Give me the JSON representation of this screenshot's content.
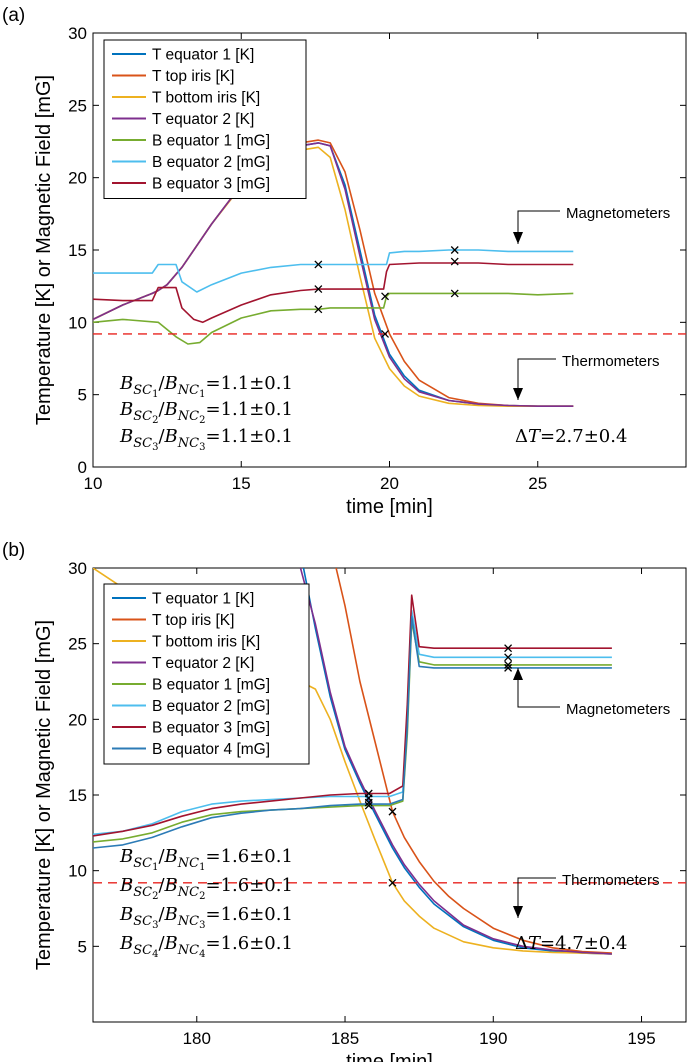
{
  "chart_data": [
    {
      "type": "line",
      "panel_label": "(a)",
      "xlabel": "time [min]",
      "ylabel": "Temperature [K] or Magnetic Field [mG]",
      "xlim": [
        10,
        30
      ],
      "ylim": [
        0,
        30
      ],
      "xticks": [
        10,
        15,
        20,
        25
      ],
      "yticks": [
        0,
        5,
        10,
        15,
        20,
        25,
        30
      ],
      "legend_position": "top-left",
      "threshold": 9.2,
      "series": [
        {
          "name": "T equator 1 [K]",
          "color": "#0072BD",
          "x": [
            10,
            11,
            12,
            12.2,
            12.5,
            13,
            13.5,
            14,
            15,
            16,
            17,
            17.6,
            18,
            18.5,
            19,
            19.5,
            20,
            20.5,
            21,
            22,
            23,
            24,
            25,
            26.2
          ],
          "y": [
            10.2,
            11.2,
            12.0,
            12.2,
            12.6,
            13.8,
            15.3,
            16.8,
            19.5,
            21.2,
            22.2,
            22.4,
            22.2,
            19.5,
            15,
            10.5,
            7.8,
            6.3,
            5.3,
            4.6,
            4.35,
            4.25,
            4.2,
            4.2
          ]
        },
        {
          "name": "T top iris [K]",
          "color": "#D95319",
          "x": [
            10,
            11,
            12,
            12.2,
            12.5,
            13,
            13.5,
            14,
            15,
            16,
            17,
            17.6,
            18,
            18.5,
            19,
            19.5,
            20,
            20.5,
            21,
            22,
            23,
            24,
            25,
            26.2
          ],
          "y": [
            10.2,
            11.2,
            12.0,
            12.2,
            12.6,
            13.8,
            15.3,
            16.8,
            19.5,
            21.3,
            22.4,
            22.6,
            22.4,
            20.4,
            16.4,
            12.0,
            9.2,
            7.3,
            6.0,
            4.8,
            4.4,
            4.25,
            4.2,
            4.2
          ]
        },
        {
          "name": "T bottom iris [K]",
          "color": "#EDB120",
          "x": [
            10,
            11,
            12,
            12.2,
            12.5,
            13,
            13.5,
            14,
            15,
            16,
            17,
            17.6,
            18,
            18.5,
            19,
            19.5,
            20,
            20.5,
            21,
            22,
            23,
            24,
            25,
            26.2
          ],
          "y": [
            10.2,
            11.2,
            12.0,
            12.2,
            12.6,
            13.8,
            15.3,
            16.8,
            19.4,
            21.0,
            21.9,
            22.1,
            21.4,
            17.8,
            13.2,
            8.9,
            6.8,
            5.6,
            4.9,
            4.4,
            4.25,
            4.2,
            4.2,
            4.2
          ]
        },
        {
          "name": "T equator 2 [K]",
          "color": "#7E2F8E",
          "x": [
            10,
            11,
            12,
            12.2,
            12.5,
            13,
            13.5,
            14,
            15,
            16,
            17,
            17.6,
            18,
            18.5,
            19,
            19.5,
            20,
            20.5,
            21,
            22,
            23,
            24,
            25,
            26.2
          ],
          "y": [
            10.2,
            11.2,
            12.0,
            12.2,
            12.6,
            13.8,
            15.3,
            16.8,
            19.5,
            21.2,
            22.2,
            22.4,
            22.2,
            19.2,
            14.6,
            10.2,
            7.6,
            6.1,
            5.2,
            4.6,
            4.35,
            4.25,
            4.2,
            4.2
          ]
        },
        {
          "name": "B equator 1 [mG]",
          "color": "#77AC30",
          "x": [
            10,
            11,
            12.2,
            12.8,
            13.2,
            13.6,
            14,
            15,
            16,
            17,
            17.6,
            18,
            19,
            19.8,
            19.9,
            20,
            21,
            22,
            23,
            24,
            25,
            26.2
          ],
          "y": [
            10.0,
            10.2,
            10.0,
            9.0,
            8.5,
            8.6,
            9.3,
            10.3,
            10.8,
            10.9,
            10.9,
            11.0,
            11.0,
            11.0,
            11.8,
            12.0,
            12.0,
            12.0,
            12.0,
            12.0,
            11.9,
            12.0
          ]
        },
        {
          "name": "B equator 2 [mG]",
          "color": "#4DBEEE",
          "x": [
            10,
            11,
            12,
            12.2,
            12.8,
            13,
            13.5,
            14,
            15,
            16,
            17,
            17.6,
            18,
            19,
            19.9,
            20,
            20.5,
            21,
            22,
            23,
            24,
            25,
            26.2
          ],
          "y": [
            13.4,
            13.4,
            13.4,
            14.0,
            14.0,
            12.8,
            12.1,
            12.6,
            13.4,
            13.8,
            14.0,
            14.0,
            14.0,
            14.0,
            14.0,
            14.8,
            14.9,
            14.9,
            15.0,
            15.0,
            14.9,
            14.9,
            14.9
          ]
        },
        {
          "name": "B equator 3 [mG]",
          "color": "#A2142F",
          "x": [
            10,
            11,
            12,
            12.2,
            12.8,
            13,
            13.4,
            13.7,
            14,
            15,
            16,
            17,
            17.6,
            18,
            19,
            19.8,
            19.9,
            20,
            21,
            22,
            23,
            24,
            25,
            26.2
          ],
          "y": [
            11.6,
            11.5,
            11.5,
            12.4,
            12.4,
            11.0,
            10.2,
            10.0,
            10.3,
            11.2,
            11.9,
            12.2,
            12.3,
            12.3,
            12.3,
            12.3,
            13.5,
            14.0,
            14.1,
            14.1,
            14.1,
            14.0,
            14.0,
            14.0
          ]
        }
      ],
      "markers": [
        {
          "x": 17.6,
          "y": 14.0
        },
        {
          "x": 17.6,
          "y": 12.3
        },
        {
          "x": 17.6,
          "y": 10.9
        },
        {
          "x": 19.85,
          "y": 11.8
        },
        {
          "x": 19.85,
          "y": 9.2
        },
        {
          "x": 22.2,
          "y": 15.0
        },
        {
          "x": 22.2,
          "y": 14.2
        },
        {
          "x": 22.2,
          "y": 12.0
        }
      ],
      "ratios": [
        "1.1±0.1",
        "1.1±0.1",
        "1.1±0.1"
      ],
      "delta_t": "2.7±0.4",
      "annotations": {
        "magnetometers": "Magnetometers",
        "thermometers": "Thermometers"
      }
    },
    {
      "type": "line",
      "panel_label": "(b)",
      "xlabel": "time [min]",
      "ylabel": "Temperature [K] or Magnetic Field [mG]",
      "xlim": [
        176.5,
        196.5
      ],
      "ylim": [
        0,
        30
      ],
      "xticks": [
        180,
        185,
        190,
        195
      ],
      "yticks": [
        5,
        10,
        15,
        20,
        25,
        30
      ],
      "legend_position": "top-left",
      "threshold": 9.2,
      "series": [
        {
          "name": "T equator 1 [K]",
          "color": "#0072BD",
          "x": [
            183.6,
            184,
            184.5,
            185,
            185.5,
            185.8,
            186,
            186.6,
            187,
            187.5,
            188,
            189,
            190,
            191,
            192,
            193,
            194
          ],
          "y": [
            30,
            26,
            21.5,
            18,
            15.8,
            14.6,
            13.8,
            11.5,
            10.2,
            8.9,
            7.8,
            6.3,
            5.4,
            4.9,
            4.7,
            4.55,
            4.5
          ]
        },
        {
          "name": "T top iris [K]",
          "color": "#D95319",
          "x": [
            184.7,
            185,
            185.5,
            186,
            186.6,
            187,
            187.5,
            188,
            188.5,
            189,
            190,
            191,
            192,
            193,
            194
          ],
          "y": [
            30,
            27.5,
            22.5,
            18.6,
            13.9,
            12.2,
            10.6,
            9.3,
            8.3,
            7.5,
            6.2,
            5.4,
            4.9,
            4.65,
            4.55
          ]
        },
        {
          "name": "T bottom iris [K]",
          "color": "#EDB120",
          "x": [
            176.5,
            177.5,
            178.5,
            179.5,
            180.5,
            181.5,
            182,
            182.5,
            183,
            183.5,
            184,
            184.5,
            185,
            185.5,
            186,
            186.6,
            187,
            187.5,
            188,
            189,
            190,
            191,
            192,
            193,
            194
          ],
          "y": [
            30,
            28.7,
            27.6,
            26.6,
            25.6,
            24.6,
            24,
            23.6,
            23,
            22.5,
            22,
            20,
            17.2,
            14.6,
            12.1,
            9.2,
            8.0,
            7.0,
            6.2,
            5.3,
            4.9,
            4.7,
            4.6,
            4.55,
            4.5
          ]
        },
        {
          "name": "T equator 2 [K]",
          "color": "#7E2F8E",
          "x": [
            183.5,
            184,
            184.5,
            185,
            185.5,
            185.8,
            186,
            186.6,
            187,
            187.5,
            188,
            189,
            190,
            191,
            192,
            193,
            194
          ],
          "y": [
            30,
            26.3,
            21.8,
            18.2,
            16,
            14.8,
            14,
            11.7,
            10.4,
            9.1,
            8.0,
            6.4,
            5.5,
            5.0,
            4.75,
            4.6,
            4.5
          ]
        },
        {
          "name": "B equator 1 [mG]",
          "color": "#77AC30",
          "x": [
            176.5,
            177.5,
            178.5,
            179.5,
            180.5,
            181.5,
            182.5,
            183.5,
            184.5,
            185.5,
            186.5,
            186.95,
            187.1,
            187.25,
            187.5,
            188,
            189,
            190,
            191,
            192,
            193,
            194
          ],
          "y": [
            11.9,
            12.1,
            12.5,
            13.2,
            13.7,
            13.9,
            14.0,
            14.1,
            14.2,
            14.3,
            14.3,
            14.6,
            19,
            26.5,
            23.8,
            23.6,
            23.6,
            23.6,
            23.6,
            23.6,
            23.6,
            23.6
          ]
        },
        {
          "name": "B equator 2 [mG]",
          "color": "#4DBEEE",
          "x": [
            176.5,
            177.5,
            178.5,
            179.5,
            180.5,
            181.5,
            182.5,
            183.5,
            184.5,
            185.5,
            186.5,
            186.95,
            187.1,
            187.25,
            187.5,
            188,
            189,
            190,
            191,
            192,
            193,
            194
          ],
          "y": [
            12.4,
            12.6,
            13.1,
            13.9,
            14.4,
            14.6,
            14.7,
            14.8,
            14.9,
            14.9,
            14.9,
            15.2,
            20,
            27.2,
            24.3,
            24.1,
            24.1,
            24.1,
            24.1,
            24.1,
            24.1,
            24.1
          ]
        },
        {
          "name": "B equator 3 [mG]",
          "color": "#A2142F",
          "x": [
            176.5,
            177.5,
            178.5,
            179.5,
            180.5,
            181.5,
            182.5,
            183.5,
            184.5,
            185.5,
            186.5,
            186.95,
            187.1,
            187.25,
            187.5,
            188,
            189,
            190,
            191,
            192,
            193,
            194
          ],
          "y": [
            12.3,
            12.6,
            13.0,
            13.6,
            14.1,
            14.4,
            14.6,
            14.8,
            15.0,
            15.1,
            15.1,
            15.6,
            21,
            28.2,
            24.8,
            24.7,
            24.7,
            24.7,
            24.7,
            24.7,
            24.7,
            24.7
          ]
        },
        {
          "name": "B equator 4 [mG]",
          "color": "#2C7BB6",
          "x": [
            176.5,
            177.5,
            178.5,
            179.5,
            180.5,
            181.5,
            182.5,
            183.5,
            184.5,
            185.5,
            186.5,
            186.95,
            187.1,
            187.25,
            187.5,
            188,
            189,
            190,
            191,
            192,
            193,
            194
          ],
          "y": [
            11.5,
            11.7,
            12.2,
            12.9,
            13.5,
            13.8,
            14.0,
            14.1,
            14.3,
            14.4,
            14.4,
            14.7,
            19.5,
            26.8,
            23.5,
            23.4,
            23.4,
            23.4,
            23.4,
            23.4,
            23.4,
            23.4
          ]
        }
      ],
      "markers": [
        {
          "x": 185.8,
          "y": 15.1
        },
        {
          "x": 185.8,
          "y": 14.8
        },
        {
          "x": 185.8,
          "y": 14.5
        },
        {
          "x": 185.8,
          "y": 14.3
        },
        {
          "x": 186.6,
          "y": 13.9
        },
        {
          "x": 186.6,
          "y": 9.2
        },
        {
          "x": 190.5,
          "y": 24.7
        },
        {
          "x": 190.5,
          "y": 24.1
        },
        {
          "x": 190.5,
          "y": 23.6
        },
        {
          "x": 190.5,
          "y": 23.4
        }
      ],
      "ratios": [
        "1.6±0.1",
        "1.6±0.1",
        "1.6±0.1",
        "1.6±0.1"
      ],
      "delta_t": "4.7±0.4",
      "annotations": {
        "magnetometers": "Magnetometers",
        "thermometers": "Thermometers"
      }
    }
  ]
}
